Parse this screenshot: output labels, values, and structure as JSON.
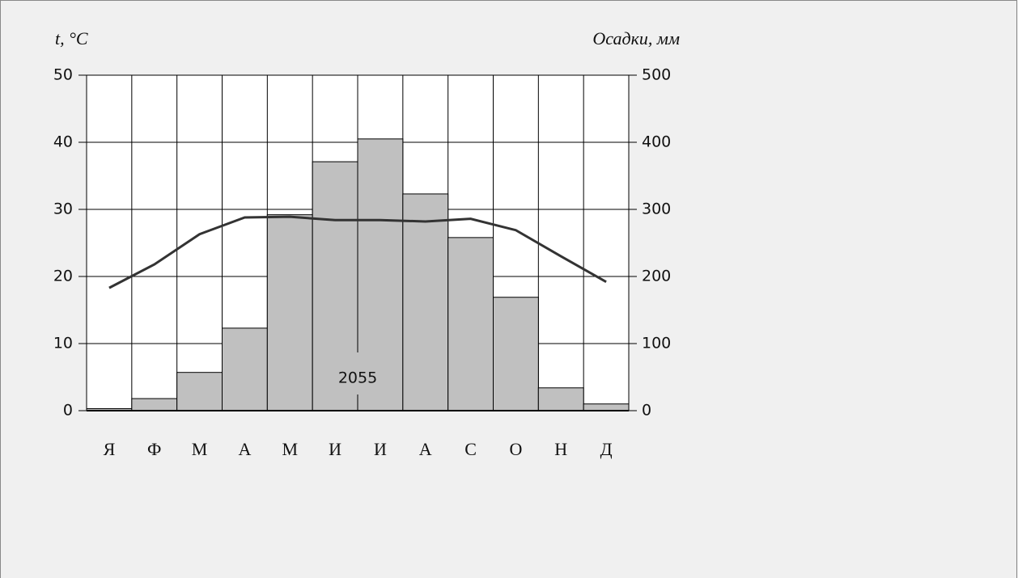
{
  "chart_data": {
    "type": "bar",
    "y_label": "t, °C",
    "y2_label": "Осадки, мм",
    "categories": [
      "Я",
      "Ф",
      "М",
      "А",
      "М",
      "И",
      "И",
      "А",
      "С",
      "О",
      "Н",
      "Д"
    ],
    "series": [
      {
        "type": "bar",
        "axis": "y2",
        "color": "#c0c0c0",
        "values": [
          3,
          18,
          57,
          123,
          292,
          371,
          405,
          323,
          258,
          169,
          34,
          10
        ]
      },
      {
        "type": "line",
        "axis": "y",
        "color": "#333333",
        "values": [
          18.3,
          21.8,
          26.3,
          28.8,
          28.9,
          28.4,
          28.4,
          28.2,
          28.6,
          26.9,
          23.0,
          19.2
        ]
      }
    ],
    "annotation": "2055",
    "ylim": [
      0,
      50
    ],
    "yticks": [
      0,
      10,
      20,
      30,
      40,
      50
    ],
    "y2lim": [
      0,
      500
    ],
    "y2ticks": [
      0,
      100,
      200,
      300,
      400,
      500
    ],
    "grid": true
  }
}
